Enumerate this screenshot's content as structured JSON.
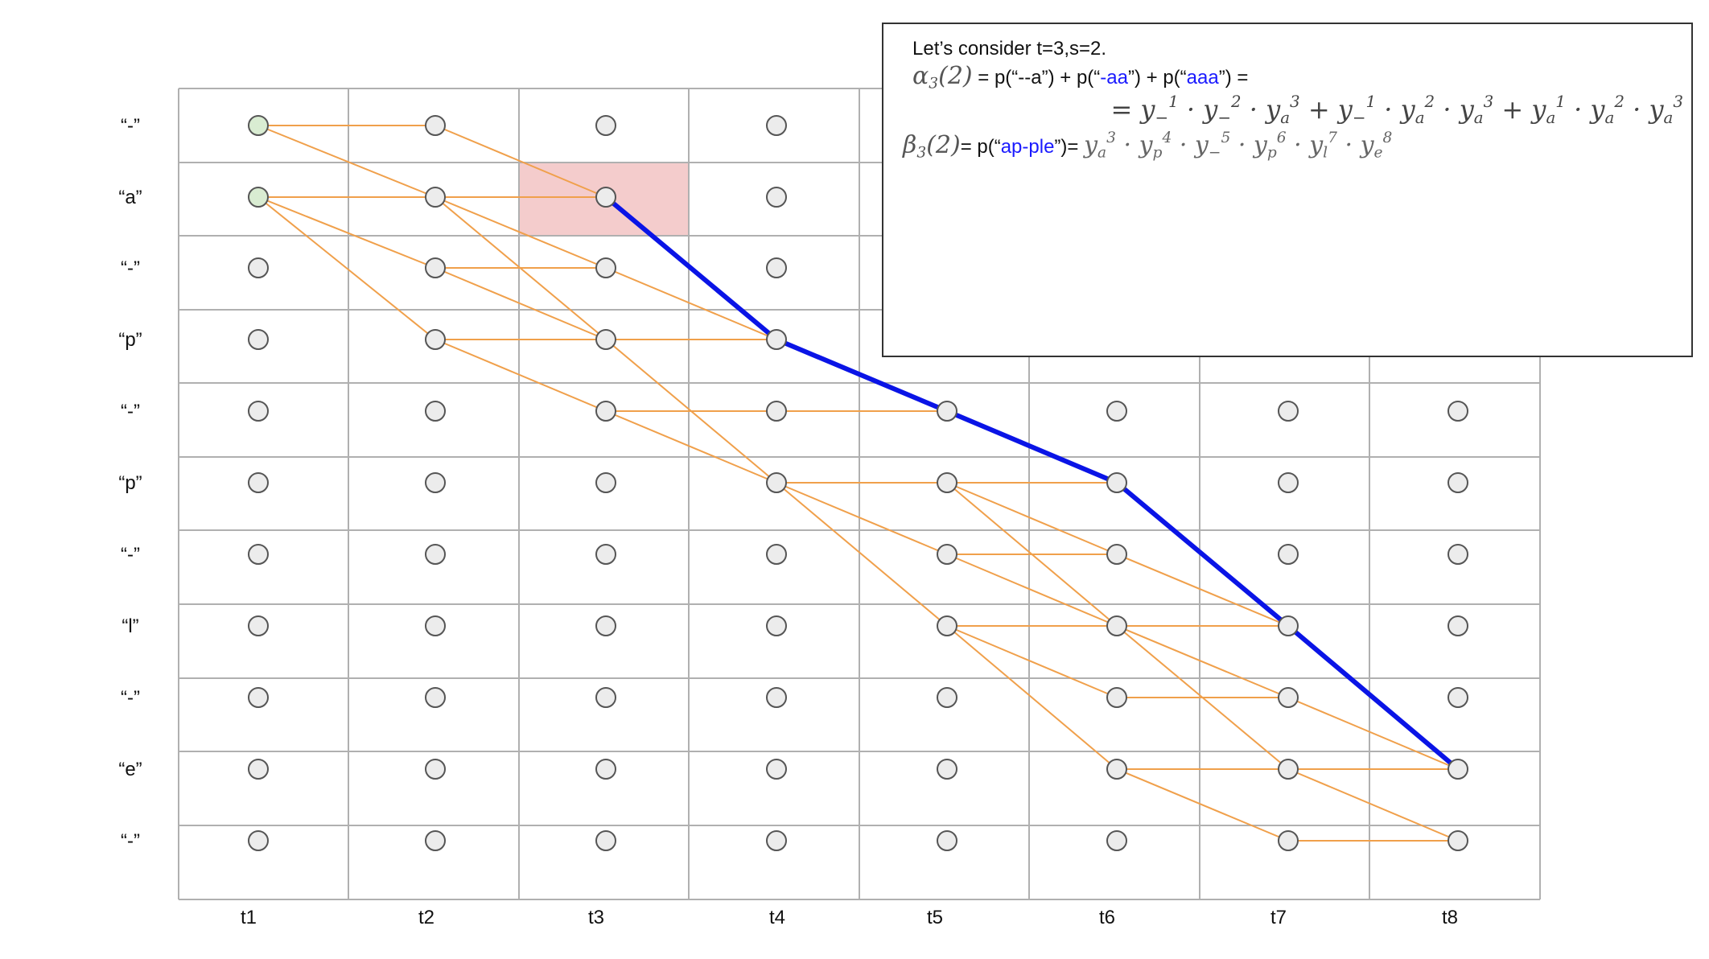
{
  "rows": [
    "“-”",
    "“a”",
    "“-”",
    "“p”",
    "“-”",
    "“p”",
    "“-”",
    "“l”",
    "“-”",
    "“e”",
    "“-”"
  ],
  "columns": [
    "t1",
    "t2",
    "t3",
    "t4",
    "t5",
    "t6",
    "t7",
    "t8"
  ],
  "colors": {
    "grid": "#b0b0b0",
    "node_fill": "#ececec",
    "node_stroke": "#555555",
    "start_fill": "#d9ecd2",
    "edge": "#f0a04b",
    "path": "#0a14e6",
    "highlight": "#f4cccc"
  },
  "start_nodes": [
    [
      1,
      0
    ],
    [
      1,
      1
    ]
  ],
  "highlight_cell": [
    3,
    1
  ],
  "edges": [
    [
      [
        1,
        0
      ],
      [
        2,
        0
      ]
    ],
    [
      [
        1,
        0
      ],
      [
        2,
        1
      ]
    ],
    [
      [
        2,
        0
      ],
      [
        3,
        1
      ]
    ],
    [
      [
        1,
        1
      ],
      [
        2,
        1
      ]
    ],
    [
      [
        2,
        1
      ],
      [
        3,
        1
      ]
    ],
    [
      [
        1,
        1
      ],
      [
        2,
        2
      ]
    ],
    [
      [
        1,
        1
      ],
      [
        2,
        3
      ]
    ],
    [
      [
        2,
        1
      ],
      [
        3,
        2
      ]
    ],
    [
      [
        2,
        1
      ],
      [
        3,
        3
      ]
    ],
    [
      [
        2,
        2
      ],
      [
        3,
        2
      ]
    ],
    [
      [
        2,
        2
      ],
      [
        3,
        3
      ]
    ],
    [
      [
        3,
        2
      ],
      [
        4,
        3
      ]
    ],
    [
      [
        2,
        3
      ],
      [
        3,
        3
      ]
    ],
    [
      [
        3,
        3
      ],
      [
        4,
        3
      ]
    ],
    [
      [
        2,
        3
      ],
      [
        3,
        4
      ]
    ],
    [
      [
        3,
        3
      ],
      [
        4,
        5
      ]
    ],
    [
      [
        3,
        4
      ],
      [
        4,
        4
      ]
    ],
    [
      [
        4,
        4
      ],
      [
        5,
        4
      ]
    ],
    [
      [
        3,
        4
      ],
      [
        4,
        5
      ]
    ],
    [
      [
        4,
        5
      ],
      [
        5,
        5
      ]
    ],
    [
      [
        5,
        5
      ],
      [
        6,
        5
      ]
    ],
    [
      [
        4,
        5
      ],
      [
        5,
        6
      ]
    ],
    [
      [
        4,
        5
      ],
      [
        5,
        7
      ]
    ],
    [
      [
        5,
        5
      ],
      [
        6,
        6
      ]
    ],
    [
      [
        5,
        5
      ],
      [
        6,
        7
      ]
    ],
    [
      [
        5,
        6
      ],
      [
        6,
        6
      ]
    ],
    [
      [
        5,
        6
      ],
      [
        6,
        7
      ]
    ],
    [
      [
        6,
        6
      ],
      [
        7,
        7
      ]
    ],
    [
      [
        5,
        7
      ],
      [
        6,
        7
      ]
    ],
    [
      [
        6,
        7
      ],
      [
        7,
        7
      ]
    ],
    [
      [
        5,
        7
      ],
      [
        6,
        8
      ]
    ],
    [
      [
        5,
        7
      ],
      [
        6,
        9
      ]
    ],
    [
      [
        6,
        7
      ],
      [
        7,
        8
      ]
    ],
    [
      [
        6,
        7
      ],
      [
        7,
        9
      ]
    ],
    [
      [
        6,
        8
      ],
      [
        7,
        8
      ]
    ],
    [
      [
        7,
        8
      ],
      [
        8,
        9
      ]
    ],
    [
      [
        6,
        9
      ],
      [
        7,
        9
      ]
    ],
    [
      [
        7,
        9
      ],
      [
        8,
        9
      ]
    ],
    [
      [
        6,
        9
      ],
      [
        7,
        10
      ]
    ],
    [
      [
        7,
        9
      ],
      [
        8,
        10
      ]
    ],
    [
      [
        7,
        10
      ],
      [
        8,
        10
      ]
    ]
  ],
  "path": [
    [
      3,
      1
    ],
    [
      4,
      3
    ],
    [
      5,
      4
    ],
    [
      6,
      5
    ],
    [
      7,
      7
    ],
    [
      8,
      9
    ]
  ],
  "info": {
    "title": "Let’s consider t=3,s=2.",
    "alpha_symbol": "α",
    "alpha_index": "3",
    "alpha_arg": "(2)",
    "alpha_text_1": " = p(“--a”) + p(“",
    "alpha_blue_1": "-aa",
    "alpha_text_2": "”) + p(“",
    "alpha_blue_2": "aaa",
    "alpha_text_3": "”) =",
    "beta_symbol": "β",
    "beta_index": "3",
    "beta_arg": "(2)",
    "beta_text_1": "= p(“",
    "beta_blue": "ap-ple",
    "beta_text_2": "”)="
  }
}
